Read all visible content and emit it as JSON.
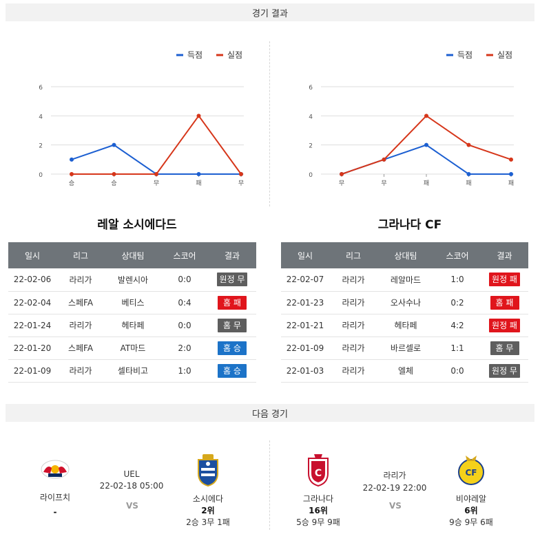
{
  "sections": {
    "results_title": "경기 결과",
    "next_title": "다음 경기"
  },
  "legend": {
    "scored": "득점",
    "conceded": "실점"
  },
  "colors": {
    "scored": "#1c5fd1",
    "conceded": "#d6361a",
    "grid": "#dddddd"
  },
  "chart_data": [
    {
      "type": "line",
      "categories": [
        "승",
        "승",
        "무",
        "패",
        "무"
      ],
      "series": [
        {
          "name": "득점",
          "values": [
            1,
            2,
            0,
            0,
            0
          ]
        },
        {
          "name": "실점",
          "values": [
            0,
            0,
            0,
            4,
            0
          ]
        }
      ],
      "ylim": [
        0,
        6
      ],
      "yticks": [
        0,
        2,
        4,
        6
      ],
      "legend": "top-right",
      "grid": true
    },
    {
      "type": "line",
      "categories": [
        "무",
        "무",
        "패",
        "패",
        "패"
      ],
      "series": [
        {
          "name": "득점",
          "values": [
            0,
            1,
            2,
            0,
            0
          ]
        },
        {
          "name": "실점",
          "values": [
            0,
            1,
            4,
            2,
            1
          ]
        }
      ],
      "ylim": [
        0,
        6
      ],
      "yticks": [
        0,
        2,
        4,
        6
      ],
      "legend": "top-right",
      "grid": true
    }
  ],
  "tables": {
    "headers": [
      "일시",
      "리그",
      "상대팀",
      "스코어",
      "결과"
    ],
    "left": {
      "team": "레알 소시에다드",
      "rows": [
        {
          "date": "22-02-06",
          "league": "라리가",
          "opponent": "발렌시아",
          "score": "0:0",
          "result": "원정 무",
          "type": "draw"
        },
        {
          "date": "22-02-04",
          "league": "스페FA",
          "opponent": "베티스",
          "score": "0:4",
          "result": "홈 패",
          "type": "loss"
        },
        {
          "date": "22-01-24",
          "league": "라리가",
          "opponent": "헤타페",
          "score": "0:0",
          "result": "홈 무",
          "type": "draw"
        },
        {
          "date": "22-01-20",
          "league": "스페FA",
          "opponent": "AT마드",
          "score": "2:0",
          "result": "홈 승",
          "type": "win"
        },
        {
          "date": "22-01-09",
          "league": "라리가",
          "opponent": "셀타비고",
          "score": "1:0",
          "result": "홈 승",
          "type": "win"
        }
      ]
    },
    "right": {
      "team": "그라나다 CF",
      "rows": [
        {
          "date": "22-02-07",
          "league": "라리가",
          "opponent": "레알마드",
          "score": "1:0",
          "result": "원정 패",
          "type": "loss"
        },
        {
          "date": "22-01-23",
          "league": "라리가",
          "opponent": "오사수나",
          "score": "0:2",
          "result": "홈 패",
          "type": "loss"
        },
        {
          "date": "22-01-21",
          "league": "라리가",
          "opponent": "헤타페",
          "score": "4:2",
          "result": "원정 패",
          "type": "loss"
        },
        {
          "date": "22-01-09",
          "league": "라리가",
          "opponent": "바르셀로",
          "score": "1:1",
          "result": "홈 무",
          "type": "draw"
        },
        {
          "date": "22-01-03",
          "league": "라리가",
          "opponent": "엘체",
          "score": "0:0",
          "result": "원정 무",
          "type": "draw"
        }
      ]
    }
  },
  "next_matches": [
    {
      "league": "UEL",
      "datetime": "22-02-18 05:00",
      "vs": "VS",
      "home": {
        "name": "라이프치",
        "rank": "-",
        "record": "",
        "logo": "leipzig-logo"
      },
      "away": {
        "name": "소시에다",
        "rank": "2위",
        "record": "2승 3무 1패",
        "logo": "real-sociedad-logo"
      }
    },
    {
      "league": "라리가",
      "datetime": "22-02-19 22:00",
      "vs": "VS",
      "home": {
        "name": "그라나다",
        "rank": "16위",
        "record": "5승 9무 9패",
        "logo": "granada-logo"
      },
      "away": {
        "name": "비야레알",
        "rank": "6위",
        "record": "9승 9무 6패",
        "logo": "villarreal-logo"
      }
    }
  ]
}
